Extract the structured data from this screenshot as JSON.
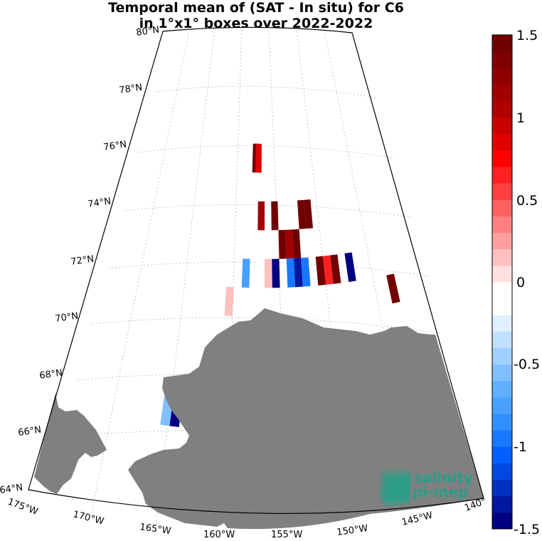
{
  "title": {
    "line1": "Temporal mean of (SAT - In situ) for C6",
    "line2": "in 1°x1° boxes over 2022-2022"
  },
  "lat_labels": [
    {
      "id": "lat-80",
      "text": "80°N"
    },
    {
      "id": "lat-78",
      "text": "78°N"
    },
    {
      "id": "lat-76",
      "text": "76°N"
    },
    {
      "id": "lat-74",
      "text": "74°N"
    },
    {
      "id": "lat-72",
      "text": "72°N"
    },
    {
      "id": "lat-70",
      "text": "70°N"
    },
    {
      "id": "lat-68",
      "text": "68°N"
    },
    {
      "id": "lat-66",
      "text": "66°N"
    },
    {
      "id": "lat-64",
      "text": "64°N"
    }
  ],
  "lon_labels": [
    {
      "id": "lon-175",
      "text": "175°W"
    },
    {
      "id": "lon-170",
      "text": "170°W"
    },
    {
      "id": "lon-165",
      "text": "165°W"
    },
    {
      "id": "lon-160",
      "text": "160°W"
    },
    {
      "id": "lon-155",
      "text": "155°W"
    },
    {
      "id": "lon-150",
      "text": "150°W"
    },
    {
      "id": "lon-145",
      "text": "145°W"
    },
    {
      "id": "lon-140",
      "text": "140°"
    }
  ],
  "colorbar": {
    "min": -1.5,
    "max": 1.5,
    "ticks": [
      "1.5",
      "1",
      "0.5",
      "0",
      "-0.5",
      "-1",
      "-1.5"
    ],
    "colors": [
      "#000080",
      "#0018a0",
      "#0030c0",
      "#0048e0",
      "#0060ff",
      "#1878ff",
      "#3090ff",
      "#48a0ff",
      "#60b0ff",
      "#80c0ff",
      "#a0d0ff",
      "#c0e0ff",
      "#e0f0ff",
      "#ffffff",
      "#ffffff",
      "#ffe0e0",
      "#ffc0c0",
      "#ffa0a0",
      "#ff8080",
      "#ff6060",
      "#ff4040",
      "#ff2020",
      "#ff0000",
      "#e00000",
      "#c80000",
      "#b00000",
      "#a00000",
      "#900000",
      "#800000",
      "#700000"
    ]
  },
  "logo": {
    "line1": "salinity",
    "line2": "pi-mep"
  },
  "colors": {
    "land": "#808080",
    "grid": "#b0b0b0",
    "logo": "#1aa38a"
  },
  "data_cells": [
    {
      "lat": 75,
      "lon": -159,
      "value": 1.5
    },
    {
      "lat": 75,
      "lon": -158.5,
      "value": 0.9
    },
    {
      "lat": 73,
      "lon": -158,
      "value": 1.1
    },
    {
      "lat": 73,
      "lon": -156,
      "value": 1.5
    },
    {
      "lat": 72,
      "lon": -155,
      "value": 1.5
    },
    {
      "lat": 72,
      "lon": -154,
      "value": 1.1
    },
    {
      "lat": 72,
      "lon": -153,
      "value": 1.5
    },
    {
      "lat": 73,
      "lon": -152,
      "value": 1.5
    },
    {
      "lat": 73,
      "lon": -151,
      "value": 1.5
    },
    {
      "lat": 71,
      "lon": -160,
      "value": -0.75
    },
    {
      "lat": 71,
      "lon": -158,
      "value": -0.2
    },
    {
      "lat": 71,
      "lon": -157,
      "value": 0.15
    },
    {
      "lat": 71,
      "lon": -156,
      "value": -1.5
    },
    {
      "lat": 71,
      "lon": -154,
      "value": -1.0
    },
    {
      "lat": 71,
      "lon": -153,
      "value": -1.4
    },
    {
      "lat": 71,
      "lon": -152,
      "value": -0.9
    },
    {
      "lat": 71,
      "lon": -150,
      "value": 1.5
    },
    {
      "lat": 71,
      "lon": -149,
      "value": 0.6
    },
    {
      "lat": 71,
      "lon": -148,
      "value": 1.5
    },
    {
      "lat": 71,
      "lon": -146,
      "value": -1.5
    },
    {
      "lat": 70,
      "lon": -141,
      "value": 1.5
    },
    {
      "lat": 70,
      "lon": -162,
      "value": 0.12
    },
    {
      "lat": 66,
      "lon": -168,
      "value": -0.55
    },
    {
      "lat": 66,
      "lon": -167,
      "value": -1.5
    }
  ]
}
